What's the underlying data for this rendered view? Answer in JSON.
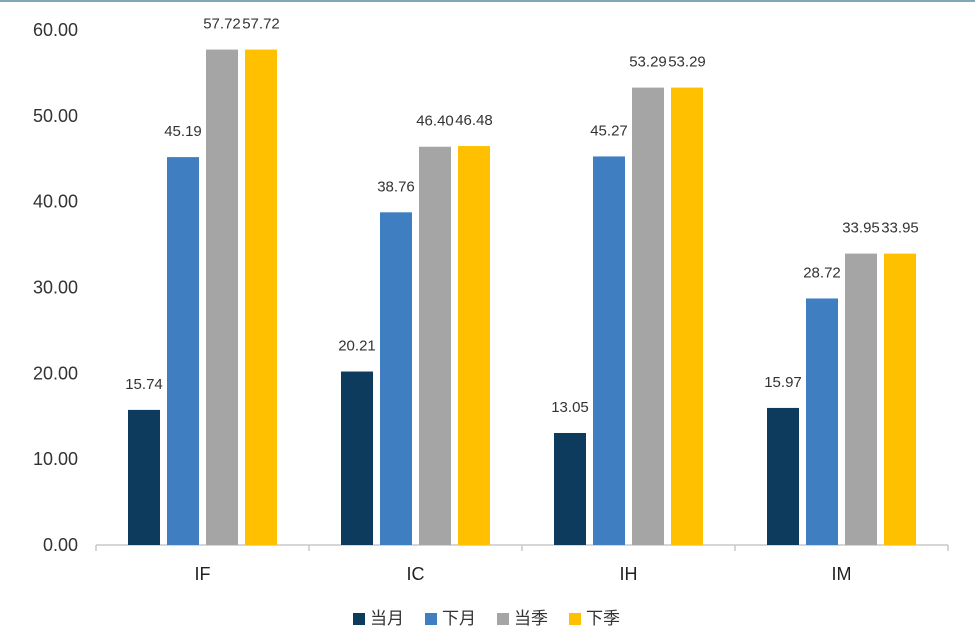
{
  "chart_data": {
    "type": "bar",
    "categories": [
      "IF",
      "IC",
      "IH",
      "IM"
    ],
    "series": [
      {
        "name": "当月",
        "color": "#0d3b5e",
        "values": [
          15.74,
          20.21,
          13.05,
          15.97
        ]
      },
      {
        "name": "下月",
        "color": "#3f7ec0",
        "values": [
          45.19,
          38.76,
          45.27,
          28.72
        ]
      },
      {
        "name": "当季",
        "color": "#a5a5a5",
        "values": [
          57.72,
          46.4,
          53.29,
          33.95
        ]
      },
      {
        "name": "下季",
        "color": "#ffc000",
        "values": [
          57.72,
          46.48,
          53.29,
          33.95
        ]
      }
    ],
    "y_ticks": [
      "0.00",
      "10.00",
      "20.00",
      "30.00",
      "40.00",
      "50.00",
      "60.00"
    ],
    "ylim": [
      0,
      60
    ],
    "grid": false,
    "legend_position": "bottom",
    "title": "",
    "xlabel": "",
    "ylabel": ""
  }
}
